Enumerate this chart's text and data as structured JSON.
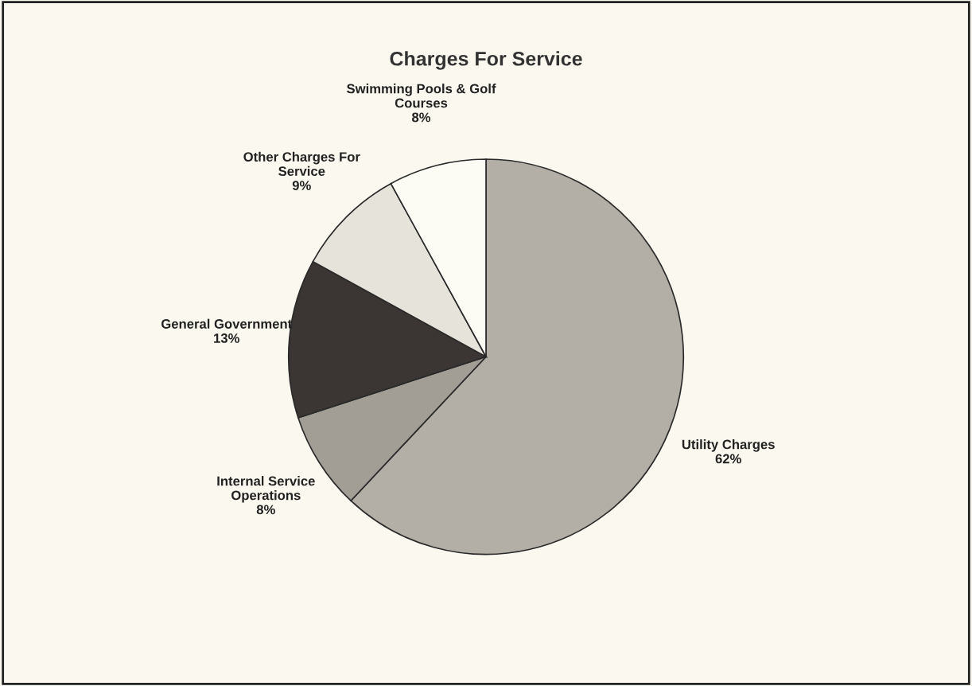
{
  "chart_data": {
    "type": "pie",
    "title": "Charges For Service",
    "categories": [
      "Utility Charges",
      "Internal Service\nOperations",
      "General Government",
      "Other Charges For\nService",
      "Swimming Pools & Golf\nCourses"
    ],
    "values": [
      62,
      8,
      13,
      9,
      8
    ],
    "value_labels": [
      "62%",
      "8%",
      "13%",
      "9%",
      "8%"
    ],
    "colors": [
      "#b3afa6",
      "#a29e96",
      "#3b3533",
      "#e6e4da",
      "#fcfbf4"
    ],
    "legend": false
  }
}
